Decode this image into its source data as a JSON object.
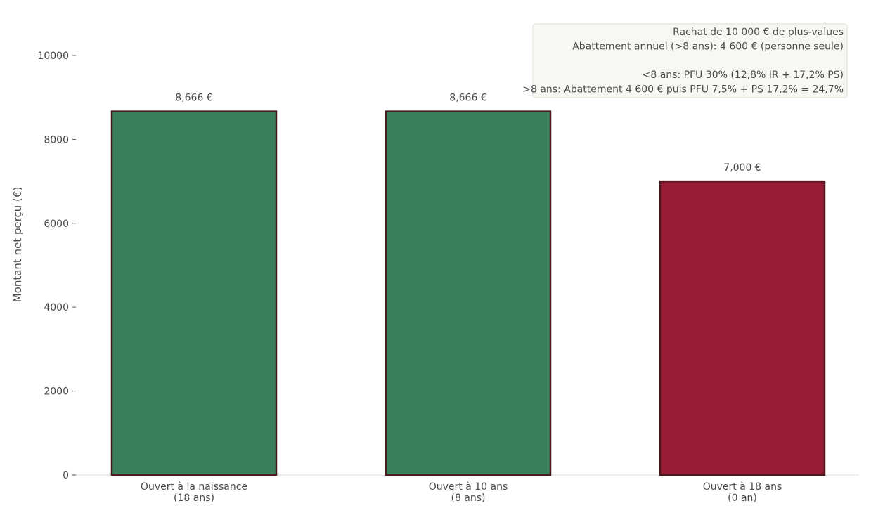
{
  "chart_data": {
    "type": "bar",
    "categories": [
      [
        "Ouvert à la naissance",
        "(18 ans)"
      ],
      [
        "Ouvert à 10 ans",
        "(8 ans)"
      ],
      [
        "Ouvert à 18 ans",
        "(0 an)"
      ]
    ],
    "values": [
      8666,
      8666,
      7000
    ],
    "value_labels": [
      "8,666 €",
      "8,666 €",
      "7,000 €"
    ],
    "bar_colors": [
      "#3a805c",
      "#3a805c",
      "#961d35"
    ],
    "bar_edge_color": "#4a1a1f",
    "ylabel": "Montant net perçu (€)",
    "xlabel": "",
    "ylim": [
      0,
      11000
    ],
    "yticks": [
      0,
      2000,
      4000,
      6000,
      8000,
      10000
    ],
    "grid": false,
    "annotation_placement": "top-right",
    "annotation": [
      "Rachat de 10 000 € de plus-values",
      "Abattement annuel (>8 ans): 4 600 € (personne seule)",
      "",
      "<8 ans: PFU 30% (12,8% IR + 17,2% PS)",
      ">8 ans: Abattement 4 600 € puis PFU 7,5% + PS 17,2% = 24,7%"
    ]
  }
}
